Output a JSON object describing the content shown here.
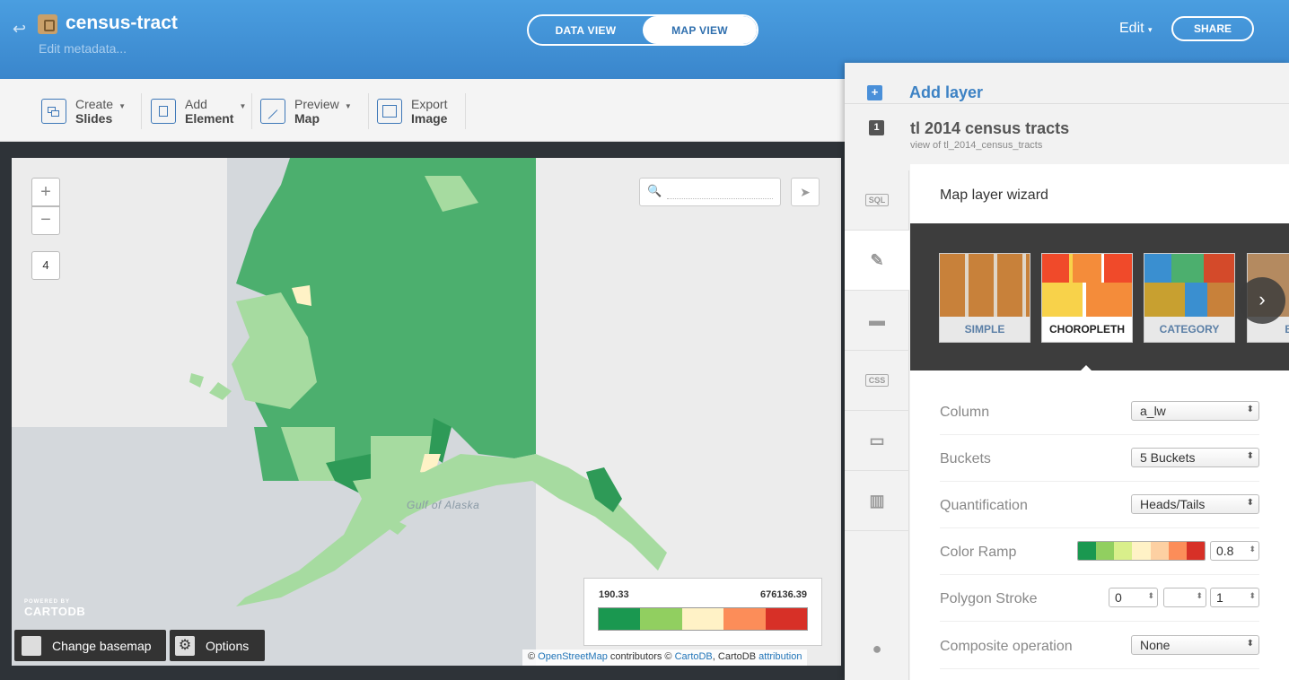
{
  "header": {
    "title": "census-tract",
    "edit_metadata": "Edit metadata...",
    "data_view_label": "DATA VIEW",
    "map_view_label": "MAP VIEW",
    "edit_label": "Edit",
    "share_label": "SHARE"
  },
  "toolbar": {
    "create_slides": {
      "line1": "Create",
      "line2": "Slides"
    },
    "add_element": {
      "line1": "Add",
      "line2": "Element"
    },
    "preview_map": {
      "line1": "Preview",
      "line2": "Map"
    },
    "export_image": {
      "line1": "Export",
      "line2": "Image"
    }
  },
  "map": {
    "zoom_in": "+",
    "zoom_out": "−",
    "zoom_level": "4",
    "gulf_label": "Gulf of Alaska",
    "legend": {
      "min": "190.33",
      "max": "676136.39",
      "colors": [
        "#1a9850",
        "#91cf60",
        "#fff2c6",
        "#fc8d59",
        "#d73027"
      ]
    },
    "logo_powered": "POWERED BY",
    "logo_text": "CARTODB",
    "basemap_label": "Change basemap",
    "options_label": "Options",
    "attribution": {
      "prefix": "©",
      "osm": "OpenStreetMap",
      "contributors": "contributors ©",
      "cartodb": "CartoDB",
      "rest": ", CartoDB",
      "attribution": "attribution"
    }
  },
  "panel": {
    "add_layer": "Add layer",
    "layer_number": "1",
    "layer_name": "tl 2014 census tracts",
    "layer_sub": "view of tl_2014_census_tracts",
    "side_tabs": {
      "sql": "SQL",
      "css": "CSS"
    },
    "wizard_title": "Map layer wizard",
    "viz_types": [
      {
        "label": "SIMPLE"
      },
      {
        "label": "CHOROPLETH"
      },
      {
        "label": "CATEGORY"
      },
      {
        "label": "BU"
      }
    ],
    "rows": {
      "column": {
        "label": "Column",
        "value": "a_lw"
      },
      "buckets": {
        "label": "Buckets",
        "value": "5 Buckets"
      },
      "quantification": {
        "label": "Quantification",
        "value": "Heads/Tails"
      },
      "color_ramp": {
        "label": "Color Ramp",
        "opacity": "0.8",
        "colors": [
          "#1a9850",
          "#91cf60",
          "#d9ef8b",
          "#fff2c6",
          "#fdd0a2",
          "#fc8d59",
          "#d73027"
        ]
      },
      "polygon_stroke": {
        "label": "Polygon Stroke",
        "width": "0",
        "opacity": "1"
      },
      "composite": {
        "label": "Composite operation",
        "value": "None"
      }
    }
  }
}
